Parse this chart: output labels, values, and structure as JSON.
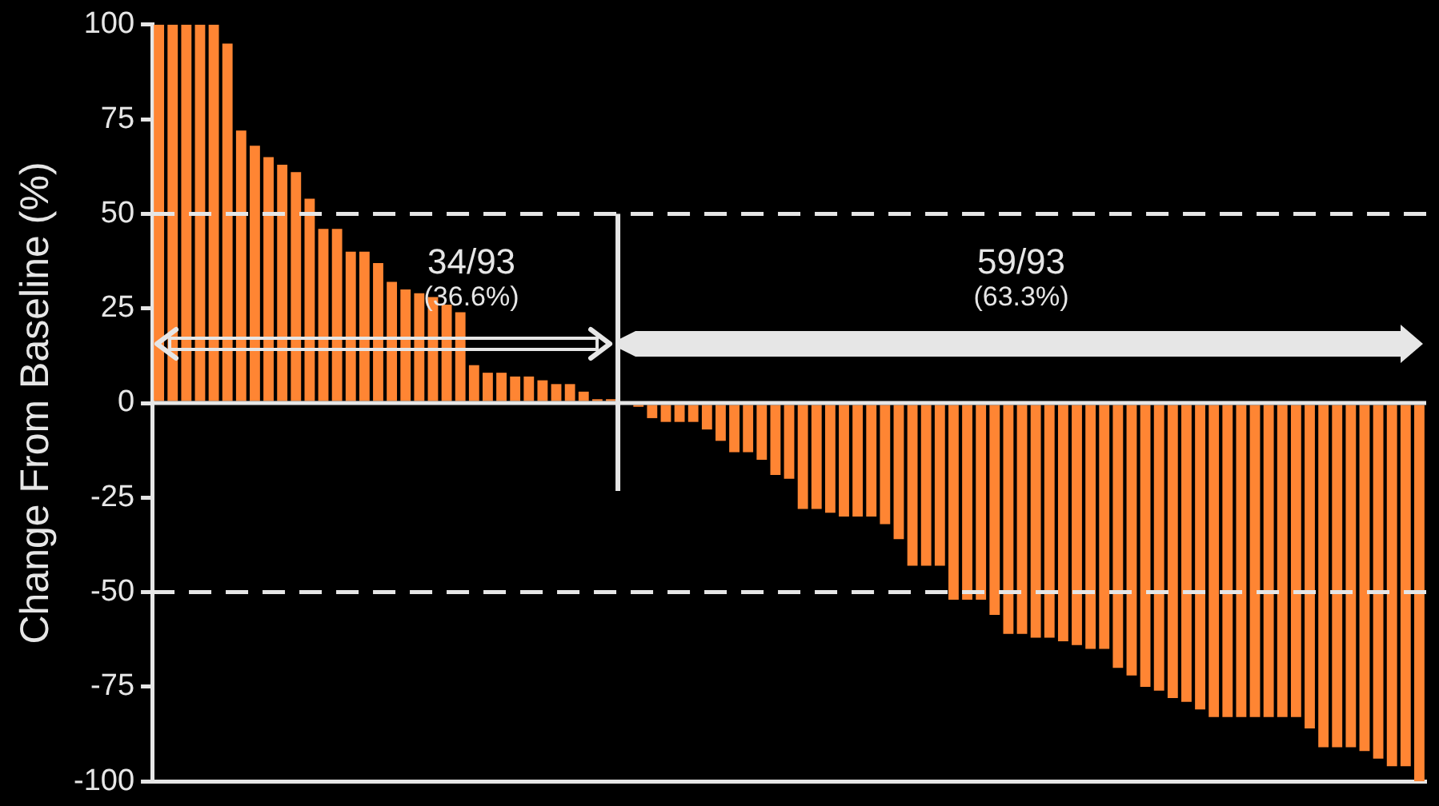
{
  "chart_data": {
    "type": "bar",
    "ylabel": "Change From Baseline (%)",
    "categories": [
      null,
      null,
      null,
      null,
      null,
      null,
      null,
      null,
      null,
      null,
      null,
      null,
      null,
      null,
      null,
      null,
      null,
      null,
      null,
      null,
      null,
      null,
      null,
      null,
      null,
      null,
      null,
      null,
      null,
      null,
      null,
      null,
      null,
      null,
      null,
      null,
      null,
      null,
      null,
      null,
      null,
      null,
      null,
      null,
      null,
      null,
      null,
      null,
      null,
      null,
      null,
      null,
      null,
      null,
      null,
      null,
      null,
      null,
      null,
      null,
      null,
      null,
      null,
      null,
      null,
      null,
      null,
      null,
      null,
      null,
      null,
      null,
      null,
      null,
      null,
      null,
      null,
      null,
      null,
      null,
      null,
      null,
      null,
      null,
      null,
      null,
      null,
      null,
      null,
      null,
      null,
      null,
      null
    ],
    "values": [
      100,
      100,
      100,
      100,
      100,
      95,
      72,
      68,
      65,
      63,
      61,
      54,
      46,
      46,
      40,
      40,
      37,
      32,
      30,
      29,
      28,
      26,
      24,
      10,
      8,
      8,
      7,
      7,
      6,
      5,
      5,
      3,
      1,
      1,
      0,
      -1,
      -4,
      -5,
      -5,
      -5,
      -7,
      -10,
      -13,
      -13,
      -15,
      -19,
      -20,
      -28,
      -28,
      -29,
      -30,
      -30,
      -30,
      -32,
      -36,
      -43,
      -43,
      -43,
      -52,
      -52,
      -52,
      -56,
      -61,
      -61,
      -62,
      -62,
      -63,
      -64,
      -65,
      -65,
      -70,
      -72,
      -75,
      -76,
      -78,
      -79,
      -81,
      -83,
      -83,
      -83,
      -83,
      -83,
      -83,
      -83,
      -86,
      -91,
      -91,
      -91,
      -92,
      -94,
      -96,
      -96,
      -100
    ],
    "color": "#ff8533",
    "ylim": [
      -100,
      100
    ],
    "yticks": [
      -100,
      -75,
      -50,
      -25,
      0,
      25,
      50,
      75,
      100
    ],
    "grid": false,
    "legend": false,
    "ref_lines": [
      {
        "axis": "y",
        "value": 50,
        "color": "#e6e6e6",
        "line_style": "dashed"
      },
      {
        "axis": "y",
        "value": -50,
        "color": "#e6e6e6",
        "line_style": "dashed"
      },
      {
        "axis": "y",
        "value": 0,
        "color": "#e6e6e6",
        "line_style": "solid"
      }
    ],
    "annotations": [
      "34/93",
      "(36.6%)",
      "59/93",
      "(63.3%)"
    ]
  }
}
